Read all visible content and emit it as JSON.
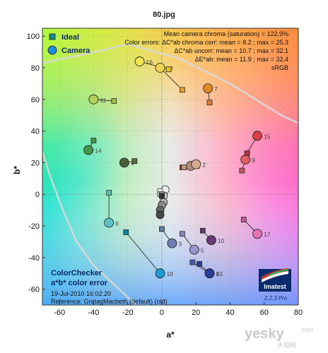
{
  "title": "80.jpg",
  "chart_data": {
    "type": "scatter",
    "xlabel": "a*",
    "ylabel": "b*",
    "xlim": [
      -70,
      80
    ],
    "ylim": [
      -70,
      105
    ],
    "xticks": [
      -60,
      -40,
      -20,
      0,
      20,
      40,
      60,
      80
    ],
    "yticks": [
      -60,
      -40,
      -20,
      0,
      20,
      40,
      60,
      80,
      100
    ],
    "grid": "dashed",
    "series": [
      {
        "name": "Ideal",
        "marker": "square"
      },
      {
        "name": "Camera",
        "marker": "circle"
      }
    ],
    "patches": [
      {
        "id": "1",
        "ideal": [
          12,
          17
        ],
        "camera": [
          17,
          18
        ],
        "ideal_color": "#7d5446",
        "camera_color": "#b48b7b"
      },
      {
        "id": "2",
        "ideal": [
          13,
          17
        ],
        "camera": [
          20,
          19
        ],
        "ideal_color": "#c69780",
        "camera_color": "#d7a894"
      },
      {
        "id": "3",
        "ideal": [
          0,
          -22
        ],
        "camera": [
          6,
          -31
        ],
        "ideal_color": "#5c7da0",
        "camera_color": "#6e7fae"
      },
      {
        "id": "4",
        "ideal": [
          -16,
          21
        ],
        "camera": [
          -22,
          20
        ],
        "ideal_color": "#596b3c",
        "camera_color": "#47603a"
      },
      {
        "id": "5",
        "ideal": [
          12,
          -25
        ],
        "camera": [
          19,
          -35
        ],
        "ideal_color": "#8582b1",
        "camera_color": "#9b95cc"
      },
      {
        "id": "6",
        "ideal": [
          -31,
          1
        ],
        "camera": [
          -31,
          -18
        ],
        "ideal_color": "#63bdaa",
        "camera_color": "#5fc1c5"
      },
      {
        "id": "7",
        "ideal": [
          28,
          58
        ],
        "camera": [
          27,
          67
        ],
        "ideal_color": "#d6813a",
        "camera_color": "#e08a26"
      },
      {
        "id": "8",
        "ideal": [
          18,
          -43
        ],
        "camera": [
          28,
          -50
        ],
        "ideal_color": "#4a5ba6",
        "camera_color": "#3f4fb0"
      },
      {
        "id": "9",
        "ideal": [
          47,
          15
        ],
        "camera": [
          49,
          22
        ],
        "ideal_color": "#c25a61",
        "camera_color": "#e06068"
      },
      {
        "id": "10",
        "ideal": [
          24,
          -23
        ],
        "camera": [
          29,
          -29
        ],
        "ideal_color": "#5e3d6c",
        "camera_color": "#6a3b75"
      },
      {
        "id": "11",
        "ideal": [
          -28,
          59
        ],
        "camera": [
          -40,
          60
        ],
        "ideal_color": "#9dbc40",
        "camera_color": "#b5d25d"
      },
      {
        "id": "12",
        "ideal": [
          12,
          66
        ],
        "camera": [
          -1,
          80
        ],
        "ideal_color": "#e0a32e",
        "camera_color": "#ecd44f"
      },
      {
        "id": "13",
        "ideal": [
          22,
          -44
        ],
        "camera": [
          28,
          -50
        ],
        "ideal_color": "#2b3e96",
        "camera_color": "#2c3a9a"
      },
      {
        "id": "14",
        "ideal": [
          -40,
          34
        ],
        "camera": [
          -43,
          28
        ],
        "ideal_color": "#469449",
        "camera_color": "#3f9748"
      },
      {
        "id": "15",
        "ideal": [
          50,
          26
        ],
        "camera": [
          56,
          37
        ],
        "ideal_color": "#af363c",
        "camera_color": "#d83f45"
      },
      {
        "id": "16",
        "ideal": [
          4,
          79
        ],
        "camera": [
          -13,
          84
        ],
        "ideal_color": "#e7c51f",
        "camera_color": "#f3e64f"
      },
      {
        "id": "17",
        "ideal": [
          48,
          -16
        ],
        "camera": [
          56,
          -25
        ],
        "ideal_color": "#bb5695",
        "camera_color": "#e373b5"
      },
      {
        "id": "18",
        "ideal": [
          -21,
          -24
        ],
        "camera": [
          -1,
          -50
        ],
        "ideal_color": "#0885a1",
        "camera_color": "#1a9fd3"
      }
    ],
    "neutrals": {
      "ideal": [
        [
          -1,
          2
        ],
        [
          -1,
          0
        ],
        [
          0,
          0
        ],
        [
          0,
          -1
        ],
        [
          0,
          -1
        ],
        [
          0,
          -1
        ]
      ],
      "camera": [
        [
          2,
          3
        ],
        [
          1,
          -1
        ],
        [
          1,
          -5
        ],
        [
          0,
          -7
        ],
        [
          -1,
          -10
        ],
        [
          -1,
          -13
        ]
      ],
      "ideal_colors": [
        "#f3f3f2",
        "#c8c8c8",
        "#a0a0a0",
        "#7a7a7a",
        "#555555",
        "#343434"
      ],
      "camera_colors": [
        "#f2f2f2",
        "#d2d2d2",
        "#b1b1b1",
        "#8c8c8c",
        "#666666",
        "#474747"
      ]
    },
    "gamut_upper": [
      [
        -70,
        83
      ],
      [
        -35,
        91
      ],
      [
        -20,
        95
      ],
      [
        10,
        86
      ],
      [
        40,
        70
      ],
      [
        70,
        50
      ],
      [
        80,
        45
      ]
    ],
    "gamut_lower": [
      [
        -70,
        27
      ],
      [
        -65,
        10
      ],
      [
        -58,
        -10
      ],
      [
        -50,
        -30
      ],
      [
        -40,
        -45
      ],
      [
        -30,
        -55
      ],
      [
        -20,
        -65
      ],
      [
        -15,
        -70
      ]
    ]
  },
  "legend": {
    "ideal": "Ideal",
    "camera": "Camera"
  },
  "info_lines": [
    "Mean camera chroma (saturation) = 122.9%",
    "Color errors: ΔC*ab chroma corr:  mean = 8.2 ;  max = 25.3",
    "ΔC*ab uncorr:  mean = 10.7 ;  max = 32.1",
    "ΔE*ab:  mean = 11.9 ;  max = 32.4",
    "sRGB"
  ],
  "bottom_left": {
    "title1": "ColorChecker",
    "title2": "a*b* color error",
    "date": "19-Jul-2010 16:02:20",
    "reference": "Reference: GretagMacbeth (default) (old)"
  },
  "logo": {
    "name": "Imatest",
    "version": "2.2.3  Pro"
  },
  "watermark": {
    "main": "yesky",
    "sub": "天极网",
    "domain": ".com"
  }
}
